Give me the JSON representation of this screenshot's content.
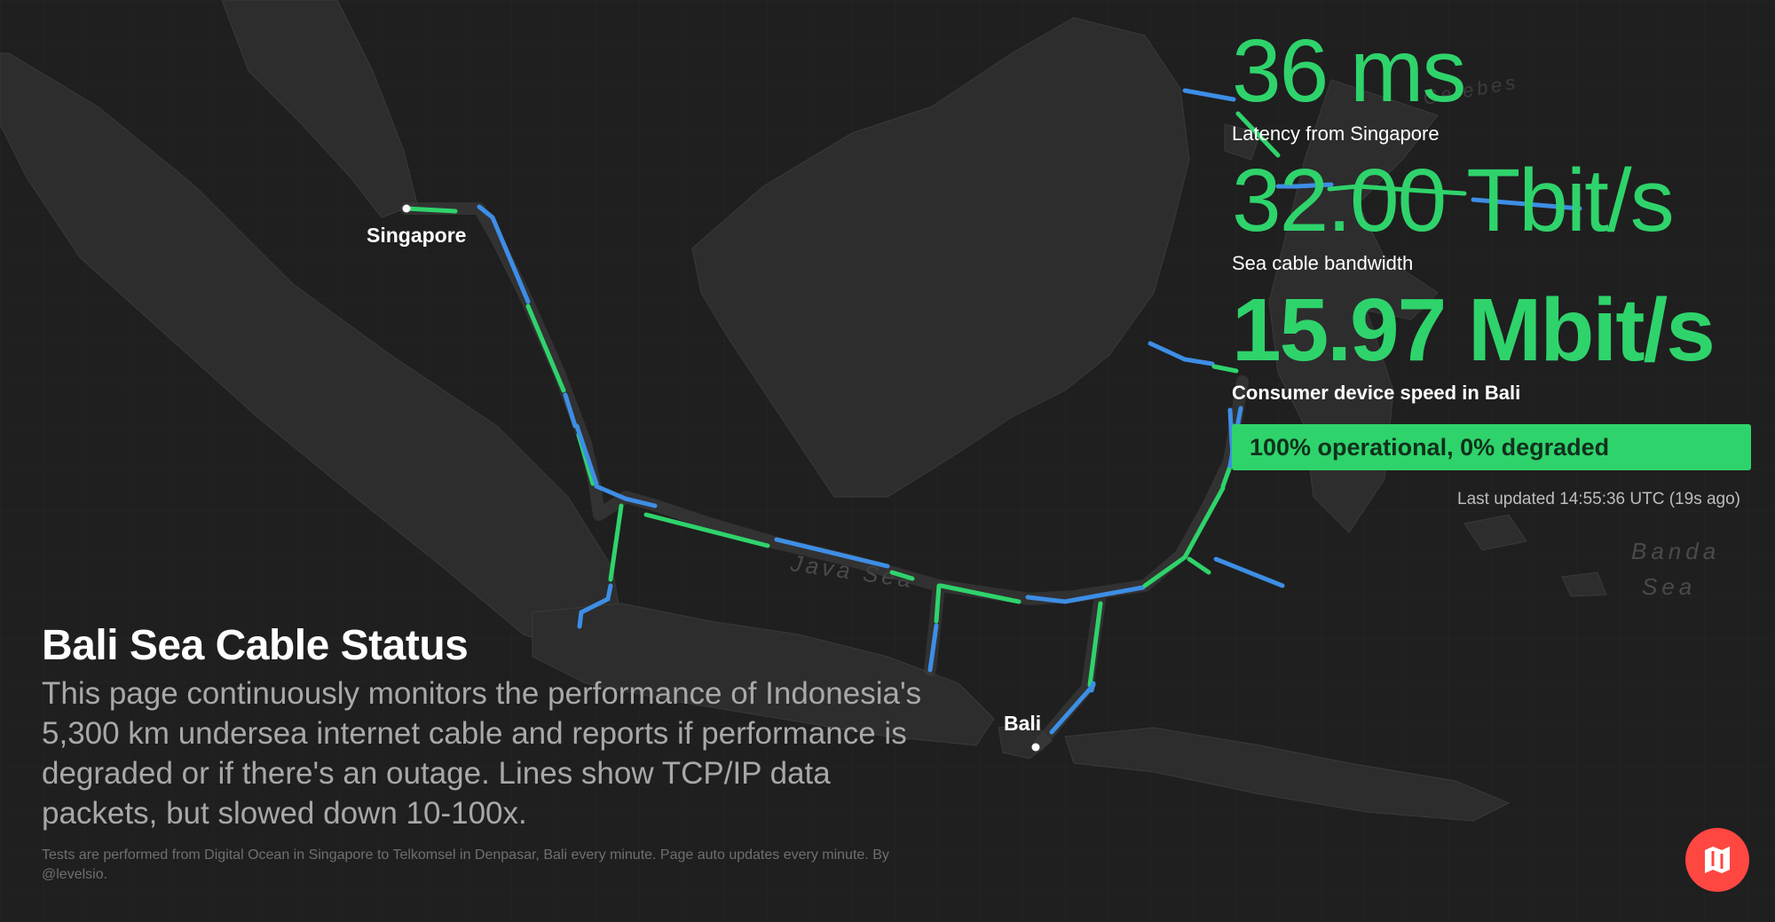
{
  "map": {
    "sea_labels": [
      "Java Sea",
      "Banda Sea"
    ],
    "faint_labels": [
      "Celebes"
    ],
    "cities": [
      {
        "name": "Singapore"
      },
      {
        "name": "Bali"
      }
    ],
    "colors": {
      "background": "#1f1f1f",
      "land": "#2c2c2c",
      "cable_green": "#2fd36b",
      "cable_blue": "#3d8ee6"
    }
  },
  "stats": {
    "latency_value": "36 ms",
    "latency_label": "Latency from Singapore",
    "bandwidth_value": "32.00 Tbit/s",
    "bandwidth_label": "Sea cable bandwidth",
    "speed_value": "15.97 Mbit/s",
    "speed_label": "Consumer device speed in Bali",
    "status_text": "100% operational, 0% degraded",
    "last_updated": "Last updated 14:55:36 UTC (19s ago)"
  },
  "intro": {
    "title": "Bali Sea Cable Status",
    "description": "This page continuously monitors the performance of Indonesia's 5,300 km undersea internet cable and reports if performance is degraded or if there's an outage. Lines show TCP/IP data packets, but slowed down 10-100x.",
    "fine_print": "Tests are performed from Digital Ocean in Singapore to Telkomsel in Denpasar, Bali every minute. Page auto updates every minute. By @levelsio."
  },
  "logo": {
    "icon": "map-logo-icon",
    "color": "#ff4742"
  }
}
